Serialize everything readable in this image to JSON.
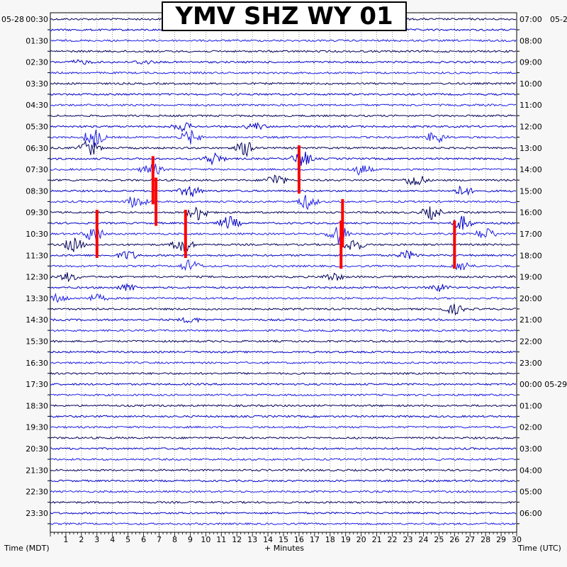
{
  "chart_data": {
    "type": "helicorder",
    "title": "YMV SHZ WY 01",
    "date_left": "05-28",
    "date_right": "05-2",
    "xlabel": "+ Minutes",
    "ylabel_left": "Time (MDT)",
    "ylabel_right": "Time (UTC)",
    "x_ticks": [
      1,
      2,
      3,
      4,
      5,
      6,
      7,
      8,
      9,
      10,
      11,
      12,
      13,
      14,
      15,
      16,
      17,
      18,
      19,
      20,
      21,
      22,
      23,
      24,
      25,
      26,
      27,
      28,
      29,
      30
    ],
    "xlim": [
      0,
      30
    ],
    "left_labels": [
      "00:30",
      "01:30",
      "02:30",
      "03:30",
      "04:30",
      "05:30",
      "06:30",
      "07:30",
      "08:30",
      "09:30",
      "10:30",
      "11:30",
      "12:30",
      "13:30",
      "14:30",
      "15:30",
      "16:30",
      "17:30",
      "18:30",
      "19:30",
      "20:30",
      "21:30",
      "22:30",
      "23:30"
    ],
    "right_labels": [
      "07:00",
      "08:00",
      "09:00",
      "10:00",
      "11:00",
      "12:00",
      "13:00",
      "14:00",
      "15:00",
      "16:00",
      "17:00",
      "18:00",
      "19:00",
      "20:00",
      "21:00",
      "22:00",
      "23:00",
      "00:00 05-29",
      "01:00",
      "02:00",
      "03:00",
      "04:00",
      "05:00",
      "06:00"
    ],
    "trace_colors": [
      "#00005a",
      "#0000c8",
      "#1e1ee6"
    ],
    "clip_color": "#ff0000",
    "activity": [
      {
        "row": 4,
        "minute": 2.0,
        "amp": 3
      },
      {
        "row": 4,
        "minute": 6.0,
        "amp": 3
      },
      {
        "row": 10,
        "minute": 8.5,
        "amp": 6
      },
      {
        "row": 10,
        "minute": 13.2,
        "amp": 5
      },
      {
        "row": 11,
        "minute": 2.8,
        "amp": 14
      },
      {
        "row": 11,
        "minute": 9.0,
        "amp": 10
      },
      {
        "row": 11,
        "minute": 24.8,
        "amp": 9
      },
      {
        "row": 12,
        "minute": 2.5,
        "amp": 12
      },
      {
        "row": 12,
        "minute": 12.6,
        "amp": 11
      },
      {
        "row": 13,
        "minute": 10.5,
        "amp": 9
      },
      {
        "row": 13,
        "minute": 16.2,
        "amp": 12
      },
      {
        "row": 14,
        "minute": 6.5,
        "amp": 10
      },
      {
        "row": 14,
        "minute": 20.0,
        "amp": 8
      },
      {
        "row": 15,
        "minute": 14.5,
        "amp": 9
      },
      {
        "row": 15,
        "minute": 23.5,
        "amp": 10
      },
      {
        "row": 16,
        "minute": 9.0,
        "amp": 9
      },
      {
        "row": 16,
        "minute": 26.5,
        "amp": 7
      },
      {
        "row": 17,
        "minute": 5.5,
        "amp": 10
      },
      {
        "row": 17,
        "minute": 16.5,
        "amp": 10
      },
      {
        "row": 18,
        "minute": 9.5,
        "amp": 11
      },
      {
        "row": 18,
        "minute": 24.5,
        "amp": 9
      },
      {
        "row": 19,
        "minute": 11.5,
        "amp": 10
      },
      {
        "row": 19,
        "minute": 26.5,
        "amp": 10
      },
      {
        "row": 20,
        "minute": 2.8,
        "amp": 12
      },
      {
        "row": 20,
        "minute": 18.5,
        "amp": 14
      },
      {
        "row": 20,
        "minute": 28.0,
        "amp": 9
      },
      {
        "row": 21,
        "minute": 1.5,
        "amp": 10
      },
      {
        "row": 21,
        "minute": 8.5,
        "amp": 12
      },
      {
        "row": 21,
        "minute": 19.5,
        "amp": 10
      },
      {
        "row": 22,
        "minute": 5.0,
        "amp": 7
      },
      {
        "row": 22,
        "minute": 23.0,
        "amp": 6
      },
      {
        "row": 23,
        "minute": 9.0,
        "amp": 9
      },
      {
        "row": 23,
        "minute": 26.5,
        "amp": 7
      },
      {
        "row": 24,
        "minute": 1.2,
        "amp": 6
      },
      {
        "row": 24,
        "minute": 18.2,
        "amp": 6
      },
      {
        "row": 25,
        "minute": 5.0,
        "amp": 5
      },
      {
        "row": 25,
        "minute": 25.0,
        "amp": 5
      },
      {
        "row": 26,
        "minute": 0.5,
        "amp": 6
      },
      {
        "row": 26,
        "minute": 3.0,
        "amp": 5
      },
      {
        "row": 27,
        "minute": 26.0,
        "amp": 7
      },
      {
        "row": 28,
        "minute": 9.0,
        "amp": 4
      }
    ],
    "clipped_bursts": [
      {
        "row": 14,
        "minute": 16.0
      },
      {
        "row": 15,
        "minute": 6.6
      },
      {
        "row": 17,
        "minute": 6.8
      },
      {
        "row": 19,
        "minute": 18.8
      },
      {
        "row": 20,
        "minute": 3.0
      },
      {
        "row": 20,
        "minute": 8.7
      },
      {
        "row": 21,
        "minute": 18.7
      },
      {
        "row": 21,
        "minute": 26.0
      }
    ]
  }
}
